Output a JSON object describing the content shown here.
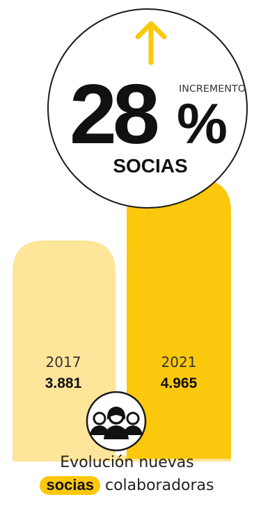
{
  "chart_data": {
    "type": "bar",
    "categories": [
      "2017",
      "2021"
    ],
    "values": [
      3881,
      4965
    ],
    "value_labels": [
      "3.881",
      "4.965"
    ],
    "colors": [
      "#fde59a",
      "#fcc80e"
    ]
  },
  "badge": {
    "value": "28",
    "unit": "%",
    "label_top": "INCREMENTO",
    "label_bottom": "SOCIAS",
    "arrow_icon": "arrow-up-icon",
    "arrow_color": "#fcc80e"
  },
  "people_icon": "people-group-icon",
  "caption": {
    "line1": "Evolución nuevas",
    "highlight": "socias",
    "line2_rest": " colaboradoras"
  },
  "colors": {
    "primary": "#fcc80e",
    "light": "#fde59a",
    "baseline": "#fde59a"
  }
}
